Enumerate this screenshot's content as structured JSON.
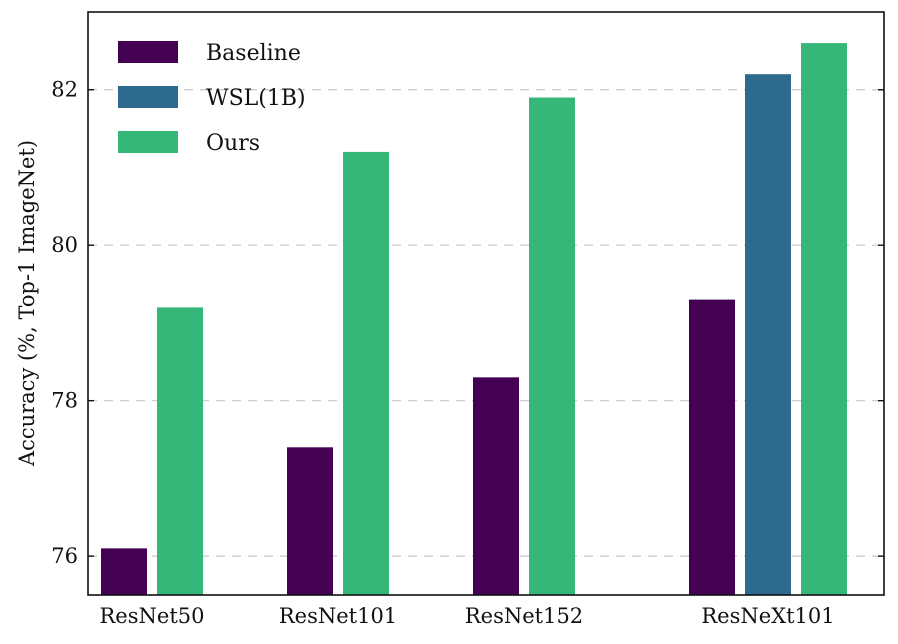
{
  "chart_data": {
    "type": "bar",
    "title": "",
    "xlabel": "",
    "ylabel": "Accuracy (%, Top-1 ImageNet)",
    "ylim": [
      75.5,
      83.0
    ],
    "yticks": [
      76,
      78,
      80,
      82
    ],
    "grid": "horizontal dashed",
    "legend_position": "top-left",
    "categories": [
      "ResNet50",
      "ResNet101",
      "ResNet152",
      "ResNeXt101"
    ],
    "series": [
      {
        "name": "Baseline",
        "color": "#440154",
        "values": [
          76.1,
          77.4,
          78.3,
          79.3
        ]
      },
      {
        "name": "WSL(1B)",
        "color": "#2e6a8e",
        "values": [
          null,
          null,
          null,
          82.2
        ]
      },
      {
        "name": "Ours",
        "color": "#35b779",
        "values": [
          79.2,
          81.2,
          81.9,
          82.6
        ]
      }
    ]
  }
}
